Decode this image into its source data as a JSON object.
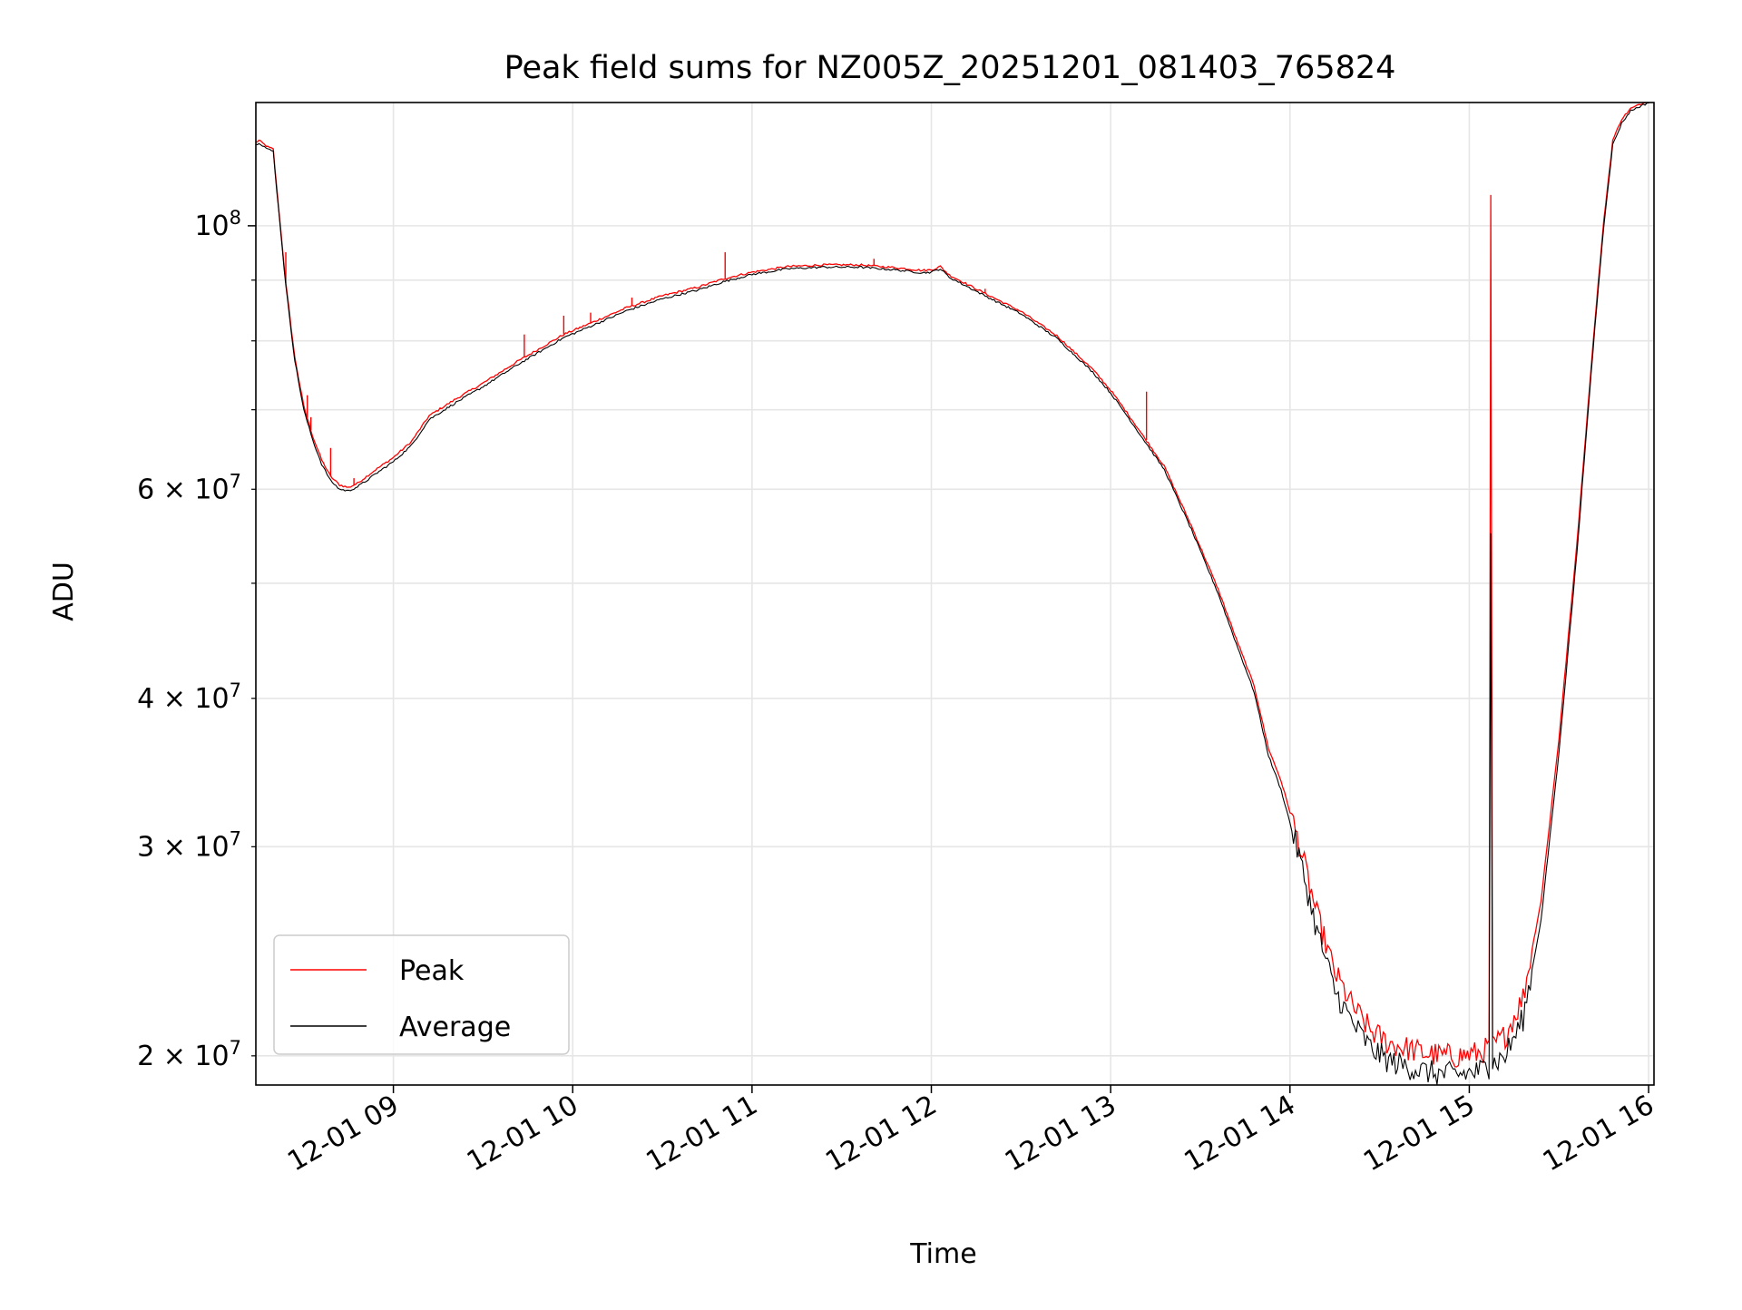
{
  "chart_data": {
    "type": "line",
    "title": "Peak field sums for NZ005Z_20251201_081403_765824",
    "xlabel": "Time",
    "ylabel": "ADU",
    "yscale": "log",
    "ylim": [
      18900000,
      127000000
    ],
    "xlim_hours": [
      8.233,
      16.03
    ],
    "grid": true,
    "legend_position": "lower-left",
    "colors": {
      "peak": "#ff0000",
      "average": "#000000",
      "grid": "#e6e6e6"
    },
    "x_ticks": [
      {
        "value": 9,
        "label": "12-01 09"
      },
      {
        "value": 10,
        "label": "12-01 10"
      },
      {
        "value": 11,
        "label": "12-01 11"
      },
      {
        "value": 12,
        "label": "12-01 12"
      },
      {
        "value": 13,
        "label": "12-01 13"
      },
      {
        "value": 14,
        "label": "12-01 14"
      },
      {
        "value": 15,
        "label": "12-01 15"
      },
      {
        "value": 16,
        "label": "12-01 16"
      }
    ],
    "y_major_ticks": [
      {
        "value": 100000000,
        "mantissa": "10",
        "exponent": "8"
      }
    ],
    "y_minor_ticks": [
      {
        "value": 20000000,
        "mantissa": "2",
        "times": "×",
        "base": "10",
        "exponent": "7"
      },
      {
        "value": 30000000,
        "mantissa": "3",
        "times": "×",
        "base": "10",
        "exponent": "7"
      },
      {
        "value": 40000000,
        "mantissa": "4",
        "times": "×",
        "base": "10",
        "exponent": "7"
      },
      {
        "value": 60000000,
        "mantissa": "6",
        "times": "×",
        "base": "10",
        "exponent": "7"
      }
    ],
    "y_unlabeled_ticks": [
      50000000,
      70000000,
      80000000,
      90000000
    ],
    "series": [
      {
        "name": "Average",
        "x": [
          8.233,
          8.25,
          8.3,
          8.33,
          8.35,
          8.4,
          8.45,
          8.5,
          8.55,
          8.6,
          8.65,
          8.7,
          8.75,
          8.8,
          8.85,
          8.9,
          9.0,
          9.1,
          9.2,
          9.35,
          9.5,
          9.7,
          9.95,
          10.1,
          10.3,
          10.5,
          10.7,
          10.85,
          11.0,
          11.2,
          11.4,
          11.6,
          11.8,
          11.95,
          12.0,
          12.05,
          12.1,
          12.3,
          12.5,
          12.7,
          12.9,
          13.0,
          13.1,
          13.3,
          13.45,
          13.6,
          13.7,
          13.8,
          13.85,
          13.88,
          13.95,
          14.05,
          14.15,
          14.25,
          14.35,
          14.45,
          14.55,
          14.65,
          14.75,
          14.85,
          14.95,
          15.05,
          15.11,
          15.12,
          15.13,
          15.2,
          15.3,
          15.4,
          15.5,
          15.6,
          15.7,
          15.75,
          15.8,
          15.85,
          15.9,
          16.0,
          16.03
        ],
        "y": [
          117000000,
          117500000,
          116000000,
          115500000,
          107000000,
          89000000,
          77000000,
          70000000,
          66000000,
          63000000,
          61000000,
          60000000,
          59800000,
          60300000,
          61000000,
          61800000,
          63300000,
          65300000,
          68700000,
          71000000,
          73200000,
          76500000,
          80500000,
          82300000,
          84800000,
          86800000,
          88300000,
          89800000,
          91000000,
          92000000,
          92300000,
          92300000,
          91800000,
          91300000,
          91400000,
          92000000,
          90500000,
          87300000,
          84300000,
          80400000,
          75300000,
          72300000,
          68900000,
          62300000,
          55500000,
          49000000,
          44500000,
          40500000,
          37500000,
          35800000,
          33500000,
          29500000,
          25500000,
          22700000,
          21300000,
          20300000,
          19800000,
          19600000,
          19400000,
          19300000,
          19300000,
          19400000,
          19600000,
          56000000,
          19700000,
          20000000,
          21500000,
          26000000,
          36000000,
          53000000,
          82000000,
          100000000,
          117000000,
          122000000,
          125000000,
          127000000,
          127500000
        ]
      },
      {
        "name": "Peak",
        "x": [
          8.233,
          8.25,
          8.3,
          8.33,
          8.35,
          8.4,
          8.45,
          8.5,
          8.55,
          8.6,
          8.65,
          8.7,
          8.75,
          8.8,
          8.85,
          8.9,
          9.0,
          9.1,
          9.2,
          9.35,
          9.5,
          9.7,
          9.95,
          10.1,
          10.3,
          10.5,
          10.7,
          10.85,
          11.0,
          11.2,
          11.4,
          11.6,
          11.8,
          11.95,
          12.0,
          12.05,
          12.1,
          12.3,
          12.5,
          12.7,
          12.9,
          13.0,
          13.1,
          13.3,
          13.45,
          13.6,
          13.7,
          13.8,
          13.85,
          13.88,
          13.95,
          14.05,
          14.15,
          14.25,
          14.35,
          14.45,
          14.55,
          14.65,
          14.75,
          14.85,
          14.95,
          15.05,
          15.11,
          15.12,
          15.13,
          15.2,
          15.3,
          15.4,
          15.5,
          15.6,
          15.7,
          15.75,
          15.8,
          15.85,
          15.9,
          16.0,
          16.03
        ],
        "y": [
          117500000,
          118000000,
          116500000,
          116000000,
          107500000,
          89500000,
          77500000,
          70500000,
          66500000,
          63500000,
          61500000,
          60500000,
          60200000,
          60700000,
          61500000,
          62300000,
          63800000,
          65800000,
          69200000,
          71500000,
          73700000,
          77000000,
          81000000,
          82800000,
          85300000,
          87300000,
          88800000,
          90300000,
          91400000,
          92400000,
          92700000,
          92700000,
          92200000,
          91700000,
          91800000,
          92400000,
          90900000,
          87700000,
          84700000,
          80800000,
          75700000,
          72700000,
          69300000,
          62700000,
          55900000,
          49400000,
          44900000,
          41000000,
          38000000,
          36300000,
          34100000,
          30200000,
          26300000,
          23500000,
          22000000,
          21000000,
          20500000,
          20300000,
          20100000,
          20000000,
          20000000,
          20100000,
          20300000,
          104000000,
          20400000,
          20800000,
          22400000,
          27000000,
          37000000,
          54000000,
          83000000,
          101000000,
          118000000,
          123000000,
          125500000,
          127500000,
          128000000
        ],
        "spikes": [
          {
            "x": 8.4,
            "y": 95000000
          },
          {
            "x": 8.52,
            "y": 72000000
          },
          {
            "x": 8.54,
            "y": 69000000
          },
          {
            "x": 8.65,
            "y": 65000000
          },
          {
            "x": 8.78,
            "y": 61300000
          },
          {
            "x": 9.65,
            "y": 76000000
          },
          {
            "x": 9.73,
            "y": 81000000
          },
          {
            "x": 9.95,
            "y": 84000000
          },
          {
            "x": 10.1,
            "y": 84500000
          },
          {
            "x": 10.33,
            "y": 87000000
          },
          {
            "x": 10.85,
            "y": 95000000
          },
          {
            "x": 11.68,
            "y": 93800000
          },
          {
            "x": 12.3,
            "y": 88500000
          },
          {
            "x": 13.2,
            "y": 72500000
          }
        ]
      }
    ],
    "legend": [
      {
        "label": "Peak",
        "color": "#ff0000"
      },
      {
        "label": "Average",
        "color": "#000000"
      }
    ]
  }
}
